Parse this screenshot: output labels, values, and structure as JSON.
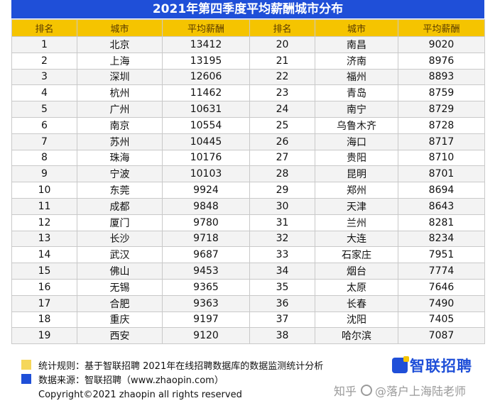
{
  "title": "2021年第四季度平均薪酬城市分布",
  "headers": [
    "排名",
    "城市",
    "平均薪酬",
    "排名",
    "城市",
    "平均薪酬"
  ],
  "rows": [
    [
      "1",
      "北京",
      "13412",
      "20",
      "南昌",
      "9020"
    ],
    [
      "2",
      "上海",
      "13195",
      "21",
      "济南",
      "8976"
    ],
    [
      "3",
      "深圳",
      "12606",
      "22",
      "福州",
      "8893"
    ],
    [
      "4",
      "杭州",
      "11462",
      "23",
      "青岛",
      "8759"
    ],
    [
      "5",
      "广州",
      "10631",
      "24",
      "南宁",
      "8729"
    ],
    [
      "6",
      "南京",
      "10554",
      "25",
      "乌鲁木齐",
      "8728"
    ],
    [
      "7",
      "苏州",
      "10445",
      "26",
      "海口",
      "8717"
    ],
    [
      "8",
      "珠海",
      "10176",
      "27",
      "贵阳",
      "8710"
    ],
    [
      "9",
      "宁波",
      "10103",
      "28",
      "昆明",
      "8701"
    ],
    [
      "10",
      "东莞",
      "9924",
      "29",
      "郑州",
      "8694"
    ],
    [
      "11",
      "成都",
      "9848",
      "30",
      "天津",
      "8643"
    ],
    [
      "12",
      "厦门",
      "9780",
      "31",
      "兰州",
      "8281"
    ],
    [
      "13",
      "长沙",
      "9718",
      "32",
      "大连",
      "8234"
    ],
    [
      "14",
      "武汉",
      "9687",
      "33",
      "石家庄",
      "7951"
    ],
    [
      "15",
      "佛山",
      "9453",
      "34",
      "烟台",
      "7774"
    ],
    [
      "16",
      "无锡",
      "9365",
      "35",
      "太原",
      "7646"
    ],
    [
      "17",
      "合肥",
      "9363",
      "36",
      "长春",
      "7490"
    ],
    [
      "18",
      "重庆",
      "9197",
      "37",
      "沈阳",
      "7405"
    ],
    [
      "19",
      "西安",
      "9120",
      "38",
      "哈尔滨",
      "7087"
    ]
  ],
  "notes": {
    "rule": "统计规则：基于智联招聘  2021年在线招聘数据库的数据监测统计分析",
    "source": "数据来源：智联招聘（www.zhaopin.com）",
    "copyright": "Copyright©2021 zhaopin all rights reserved"
  },
  "logo": {
    "text": "智联招聘",
    "icon": "zhaopin-logo-icon"
  },
  "watermark": {
    "site": "知乎",
    "author": "@落户上海陆老师",
    "icon": "zhihu-at-icon"
  },
  "colors": {
    "title_bg": "#1f4fd8",
    "header_bg": "#f5c400",
    "note_yellow": "#f5d75a",
    "note_blue": "#1f4fd8"
  }
}
